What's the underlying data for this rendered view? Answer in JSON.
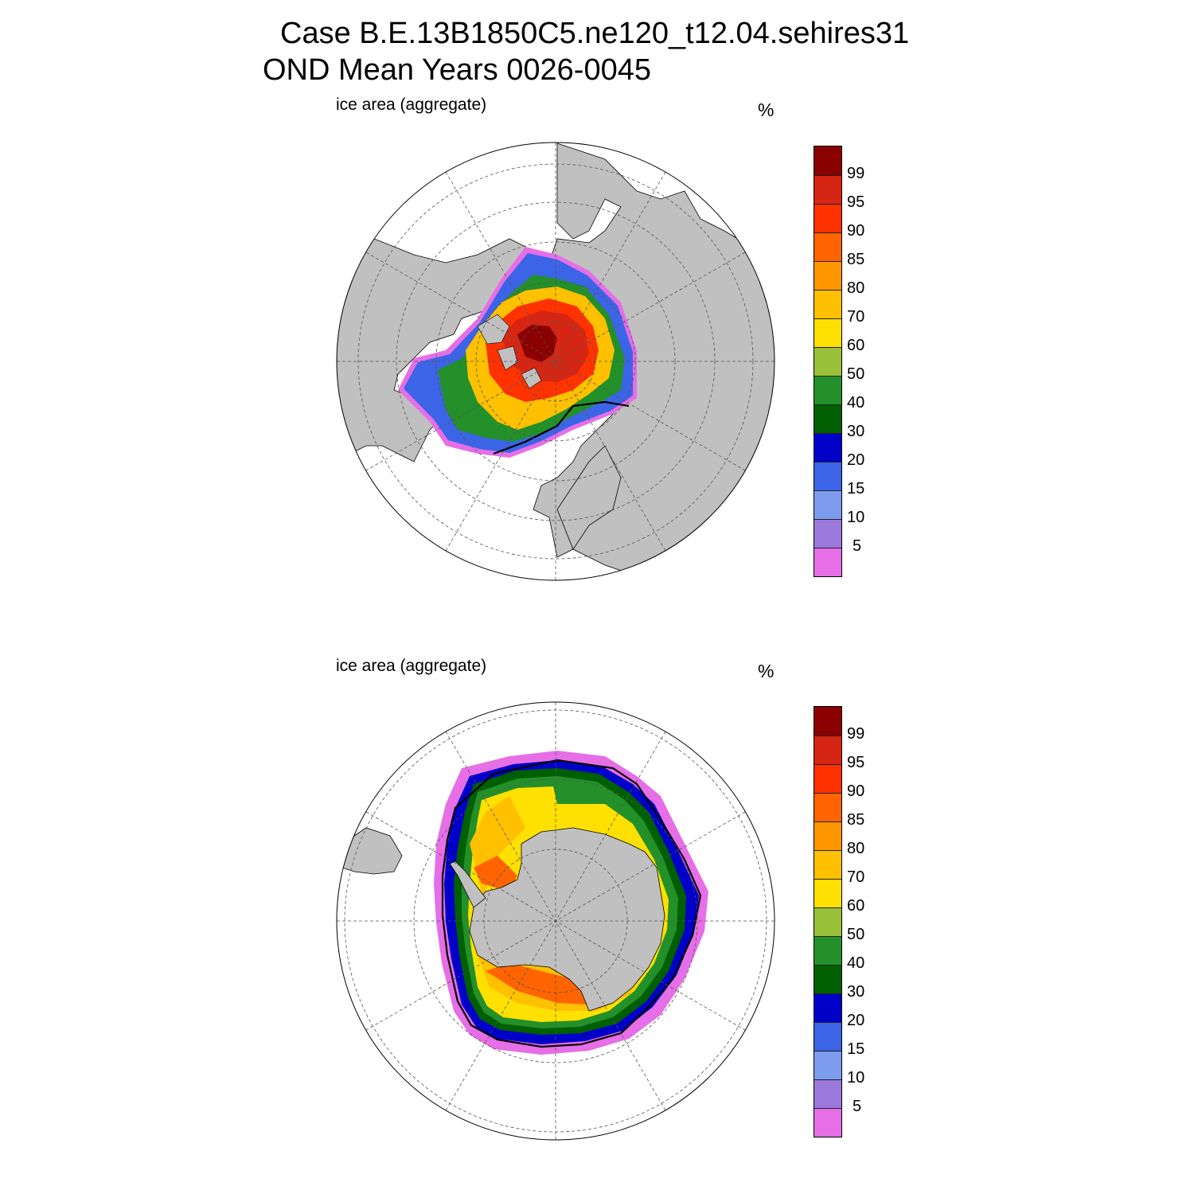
{
  "title": {
    "line1": "Case B.E.13B1850C5.ne120_t12.04.sehires31",
    "line2": "OND Mean   Years 0026-0045"
  },
  "panels": [
    {
      "hemisphere": "north",
      "label": "ice area  (aggregate)",
      "unit": "%"
    },
    {
      "hemisphere": "south",
      "label": "ice area  (aggregate)",
      "unit": "%"
    }
  ],
  "colorbar": {
    "levels": [
      "99",
      "95",
      "90",
      "85",
      "80",
      "70",
      "60",
      "50",
      "40",
      "30",
      "20",
      "15",
      "10",
      "5"
    ],
    "colors": [
      "#8b0000",
      "#d62613",
      "#ff3200",
      "#ff6400",
      "#ff9600",
      "#ffc000",
      "#ffe000",
      "#9bc03a",
      "#23902a",
      "#005f00",
      "#0000c8",
      "#3c64e6",
      "#7d9cf0",
      "#9b78dc",
      "#e66ee6"
    ]
  },
  "map_colors": {
    "land": "#c0c0c0",
    "ocean": "#ffffff",
    "graticule": "#555555"
  }
}
